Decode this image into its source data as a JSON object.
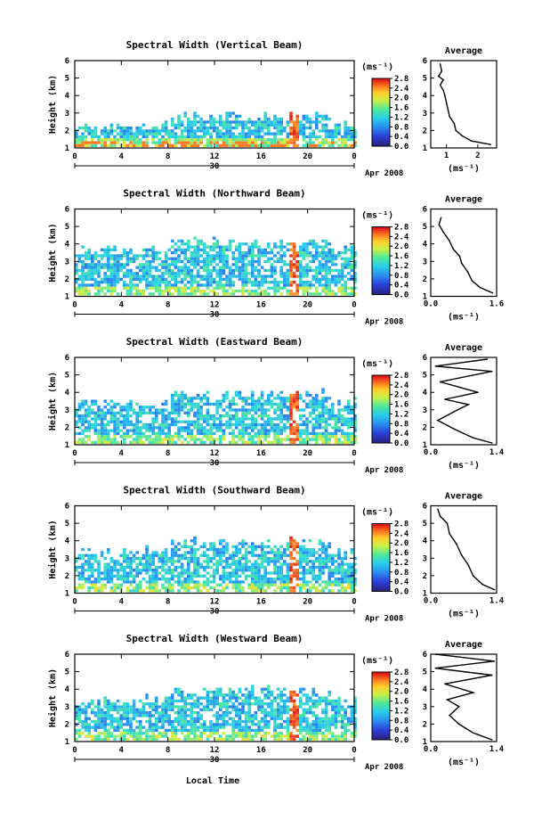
{
  "figure": {
    "xlabel": "Local Time",
    "unit_label": "(ms⁻¹)",
    "avg_title": "Average",
    "date_day": "30",
    "date_label": "Apr 2008"
  },
  "chart_data": [
    {
      "type": "heatmap",
      "title": "Spectral Width (Vertical Beam)",
      "ylabel": "Height (km)",
      "xlabel": "",
      "x_ticks": [
        "0",
        "4",
        "8",
        "12",
        "16",
        "20",
        "0"
      ],
      "xlim": [
        0,
        24
      ],
      "y_ticks": [
        "1",
        "2",
        "3",
        "4",
        "5",
        "6"
      ],
      "ylim": [
        1,
        6
      ],
      "colorbar_ticks": [
        "0.0",
        "0.4",
        "0.8",
        "1.2",
        "1.6",
        "2.0",
        "2.4",
        "2.8"
      ],
      "clim": [
        0,
        2.8
      ],
      "profile": {
        "title": "Average",
        "xlabel": "(ms⁻¹)",
        "x_ticks": [
          "1",
          "2"
        ],
        "xlim": [
          0.5,
          2.6
        ],
        "points": [
          [
            2.4,
            1.2
          ],
          [
            1.8,
            1.4
          ],
          [
            1.5,
            1.7
          ],
          [
            1.3,
            2.0
          ],
          [
            1.25,
            2.4
          ],
          [
            1.1,
            2.8
          ],
          [
            1.05,
            3.2
          ],
          [
            1.0,
            3.6
          ],
          [
            0.95,
            4.0
          ],
          [
            0.9,
            4.3
          ],
          [
            0.8,
            4.6
          ],
          [
            0.9,
            4.9
          ],
          [
            0.75,
            5.1
          ],
          [
            0.85,
            5.4
          ],
          [
            0.8,
            5.8
          ]
        ]
      }
    },
    {
      "type": "heatmap",
      "title": "Spectral Width (Northward Beam)",
      "ylabel": "Height (km)",
      "xlabel": "",
      "x_ticks": [
        "0",
        "4",
        "8",
        "12",
        "16",
        "20",
        "0"
      ],
      "xlim": [
        0,
        24
      ],
      "y_ticks": [
        "1",
        "2",
        "3",
        "4",
        "5",
        "6"
      ],
      "ylim": [
        1,
        6
      ],
      "colorbar_ticks": [
        "0.0",
        "0.4",
        "0.8",
        "1.2",
        "1.6",
        "2.0",
        "2.4",
        "2.8"
      ],
      "clim": [
        0,
        2.8
      ],
      "profile": {
        "title": "Average",
        "xlabel": "(ms⁻¹)",
        "x_ticks": [
          "0.0",
          "1.6"
        ],
        "xlim": [
          0.0,
          1.6
        ],
        "points": [
          [
            1.5,
            1.2
          ],
          [
            1.2,
            1.5
          ],
          [
            1.0,
            1.9
          ],
          [
            0.9,
            2.4
          ],
          [
            0.75,
            2.9
          ],
          [
            0.7,
            3.3
          ],
          [
            0.55,
            3.7
          ],
          [
            0.45,
            4.2
          ],
          [
            0.3,
            4.7
          ],
          [
            0.2,
            5.1
          ],
          [
            0.25,
            5.5
          ]
        ]
      }
    },
    {
      "type": "heatmap",
      "title": "Spectral Width (Eastward Beam)",
      "ylabel": "Height (km)",
      "xlabel": "",
      "x_ticks": [
        "0",
        "4",
        "8",
        "12",
        "16",
        "20",
        "0"
      ],
      "xlim": [
        0,
        24
      ],
      "y_ticks": [
        "1",
        "2",
        "3",
        "4",
        "5",
        "6"
      ],
      "ylim": [
        1,
        6
      ],
      "colorbar_ticks": [
        "0.0",
        "0.4",
        "0.8",
        "1.2",
        "1.6",
        "2.0",
        "2.4",
        "2.8"
      ],
      "clim": [
        0,
        2.8
      ],
      "profile": {
        "title": "Average",
        "xlabel": "(ms⁻¹)",
        "x_ticks": [
          "0.0",
          "1.4"
        ],
        "xlim": [
          0.0,
          1.4
        ],
        "points": [
          [
            1.3,
            1.1
          ],
          [
            0.9,
            1.4
          ],
          [
            0.5,
            1.9
          ],
          [
            0.15,
            2.4
          ],
          [
            0.5,
            2.9
          ],
          [
            0.8,
            3.3
          ],
          [
            0.3,
            3.6
          ],
          [
            1.0,
            4.0
          ],
          [
            0.2,
            4.6
          ],
          [
            1.3,
            5.2
          ],
          [
            0.1,
            5.5
          ],
          [
            1.2,
            5.9
          ]
        ]
      }
    },
    {
      "type": "heatmap",
      "title": "Spectral Width (Southward Beam)",
      "ylabel": "Height (km)",
      "xlabel": "",
      "x_ticks": [
        "0",
        "4",
        "8",
        "12",
        "16",
        "20",
        "0"
      ],
      "xlim": [
        0,
        24
      ],
      "y_ticks": [
        "1",
        "2",
        "3",
        "4",
        "5",
        "6"
      ],
      "ylim": [
        1,
        6
      ],
      "colorbar_ticks": [
        "0.0",
        "0.4",
        "0.8",
        "1.2",
        "1.6",
        "2.0",
        "2.4",
        "2.8"
      ],
      "clim": [
        0,
        2.8
      ],
      "profile": {
        "title": "Average",
        "xlabel": "(ms⁻¹)",
        "x_ticks": [
          "0.0",
          "1.4"
        ],
        "xlim": [
          0.0,
          1.4
        ],
        "points": [
          [
            1.35,
            1.2
          ],
          [
            1.1,
            1.5
          ],
          [
            0.9,
            2.0
          ],
          [
            0.8,
            2.6
          ],
          [
            0.65,
            3.2
          ],
          [
            0.55,
            3.8
          ],
          [
            0.4,
            4.4
          ],
          [
            0.35,
            5.0
          ],
          [
            0.2,
            5.4
          ],
          [
            0.15,
            5.8
          ]
        ]
      }
    },
    {
      "type": "heatmap",
      "title": "Spectral Width (Westward Beam)",
      "ylabel": "Height (km)",
      "xlabel": "",
      "x_ticks": [
        "0",
        "4",
        "8",
        "12",
        "16",
        "20",
        "0"
      ],
      "xlim": [
        0,
        24
      ],
      "y_ticks": [
        "1",
        "2",
        "3",
        "4",
        "5",
        "6"
      ],
      "ylim": [
        1,
        6
      ],
      "colorbar_ticks": [
        "0.0",
        "0.4",
        "0.8",
        "1.2",
        "1.6",
        "2.0",
        "2.4",
        "2.8"
      ],
      "clim": [
        0,
        2.8
      ],
      "profile": {
        "title": "Average",
        "xlabel": "(ms⁻¹)",
        "x_ticks": [
          "0.0",
          "1.4"
        ],
        "xlim": [
          0.0,
          1.4
        ],
        "points": [
          [
            1.3,
            1.1
          ],
          [
            0.9,
            1.5
          ],
          [
            0.6,
            2.0
          ],
          [
            0.4,
            2.5
          ],
          [
            0.6,
            3.0
          ],
          [
            0.35,
            3.4
          ],
          [
            0.9,
            3.8
          ],
          [
            0.3,
            4.3
          ],
          [
            1.3,
            4.8
          ],
          [
            0.1,
            5.2
          ],
          [
            1.35,
            5.6
          ],
          [
            0.1,
            6.0
          ]
        ]
      }
    }
  ]
}
